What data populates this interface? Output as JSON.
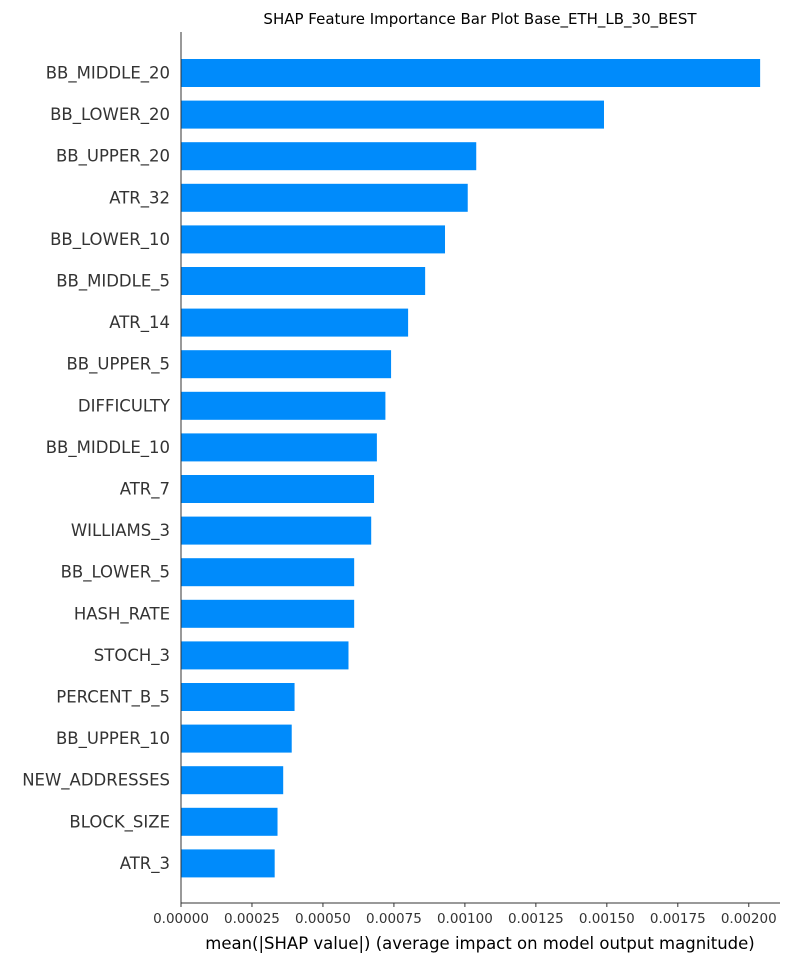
{
  "chart_data": {
    "type": "bar",
    "orientation": "horizontal",
    "title": "SHAP Feature Importance Bar Plot Base_ETH_LB_30_BEST",
    "xlabel": "mean(|SHAP value|) (average impact on model output magnitude)",
    "ylabel": "",
    "xlim": [
      0,
      0.00211
    ],
    "xticks": [
      "0.00000",
      "0.00025",
      "0.00050",
      "0.00075",
      "0.00100",
      "0.00125",
      "0.00150",
      "0.00175",
      "0.00200"
    ],
    "bar_color": "#008bfb",
    "grid": false,
    "legend": "none",
    "categories": [
      "BB_MIDDLE_20",
      "BB_LOWER_20",
      "BB_UPPER_20",
      "ATR_32",
      "BB_LOWER_10",
      "BB_MIDDLE_5",
      "ATR_14",
      "BB_UPPER_5",
      "DIFFICULTY",
      "BB_MIDDLE_10",
      "ATR_7",
      "WILLIAMS_3",
      "BB_LOWER_5",
      "HASH_RATE",
      "STOCH_3",
      "PERCENT_B_5",
      "BB_UPPER_10",
      "NEW_ADDRESSES",
      "BLOCK_SIZE",
      "ATR_3"
    ],
    "values": [
      0.00204,
      0.00149,
      0.00104,
      0.00101,
      0.00093,
      0.00086,
      0.0008,
      0.00074,
      0.00072,
      0.00069,
      0.00068,
      0.00067,
      0.00061,
      0.00061,
      0.00059,
      0.0004,
      0.00039,
      0.00036,
      0.00034,
      0.00033
    ]
  }
}
